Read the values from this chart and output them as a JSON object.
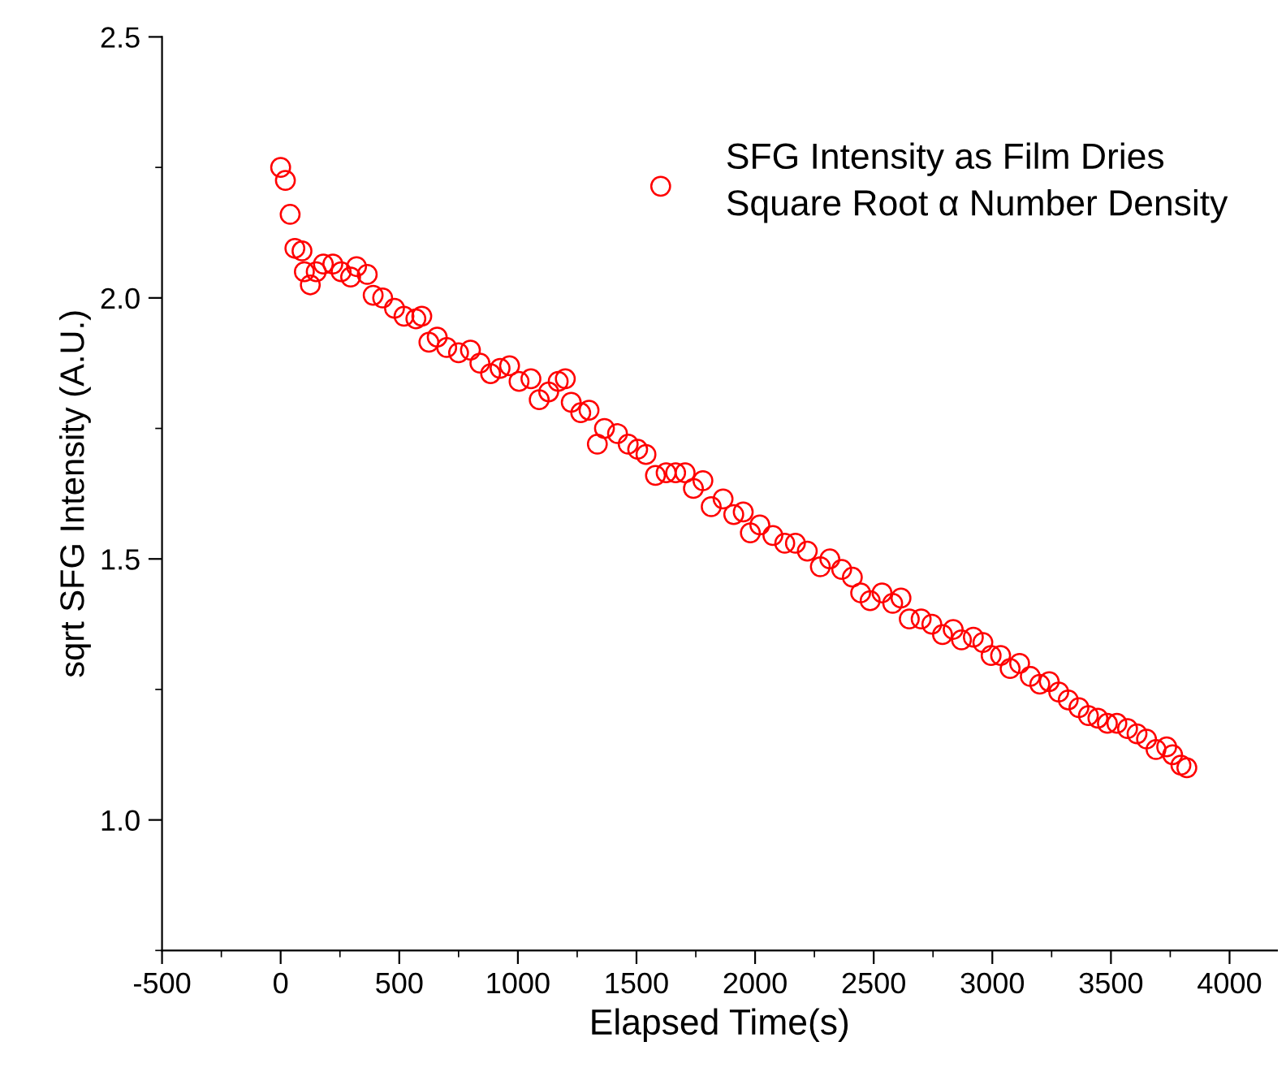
{
  "chart_data": {
    "type": "scatter",
    "xlabel": "Elapsed Time(s)",
    "ylabel": "sqrt SFG Intensity (A.U.)",
    "xlim": [
      -500,
      4200
    ],
    "xticks": [
      -500,
      0,
      500,
      1000,
      1500,
      2000,
      2500,
      3000,
      3500,
      4000
    ],
    "ylim": [
      0.75,
      2.5
    ],
    "yticks": [
      {
        "value": 1.0,
        "label": "1.0"
      },
      1.5,
      {
        "value": 2.0,
        "label": "2.0"
      },
      2.5
    ],
    "grid": false,
    "legend": "top right",
    "marker": "circle",
    "series": [
      {
        "name": "SFG Intensity as Film Dries\nSquare Root α Number Density",
        "color": "#ff0000",
        "x": [
          0,
          20,
          40,
          60,
          90,
          100,
          125,
          150,
          180,
          220,
          255,
          295,
          320,
          365,
          390,
          430,
          480,
          520,
          570,
          595,
          625,
          660,
          700,
          750,
          800,
          840,
          885,
          925,
          965,
          1005,
          1055,
          1090,
          1130,
          1170,
          1200,
          1225,
          1265,
          1300,
          1335,
          1365,
          1420,
          1465,
          1505,
          1540,
          1580,
          1625,
          1665,
          1705,
          1740,
          1780,
          1815,
          1865,
          1910,
          1950,
          1980,
          2020,
          2075,
          2125,
          2170,
          2220,
          2275,
          2315,
          2365,
          2410,
          2445,
          2485,
          2535,
          2580,
          2615,
          2650,
          2700,
          2745,
          2790,
          2835,
          2870,
          2920,
          2960,
          2995,
          3035,
          3075,
          3115,
          3160,
          3200,
          3240,
          3280,
          3320,
          3365,
          3405,
          3445,
          3485,
          3525,
          3570,
          3610,
          3650,
          3690,
          3735,
          3760,
          3795,
          3820
        ],
        "values": [
          2.25,
          2.225,
          2.16,
          2.095,
          2.09,
          2.05,
          2.025,
          2.05,
          2.065,
          2.065,
          2.05,
          2.04,
          2.06,
          2.045,
          2.005,
          2.0,
          1.98,
          1.965,
          1.96,
          1.965,
          1.915,
          1.925,
          1.905,
          1.895,
          1.9,
          1.875,
          1.855,
          1.865,
          1.87,
          1.84,
          1.845,
          1.805,
          1.82,
          1.84,
          1.845,
          1.8,
          1.78,
          1.785,
          1.72,
          1.75,
          1.74,
          1.72,
          1.71,
          1.7,
          1.66,
          1.665,
          1.665,
          1.665,
          1.635,
          1.65,
          1.6,
          1.615,
          1.585,
          1.59,
          1.55,
          1.565,
          1.545,
          1.53,
          1.53,
          1.515,
          1.485,
          1.5,
          1.48,
          1.465,
          1.435,
          1.42,
          1.435,
          1.415,
          1.425,
          1.385,
          1.385,
          1.375,
          1.355,
          1.365,
          1.345,
          1.35,
          1.34,
          1.315,
          1.315,
          1.29,
          1.3,
          1.275,
          1.26,
          1.265,
          1.245,
          1.23,
          1.215,
          1.2,
          1.195,
          1.185,
          1.185,
          1.175,
          1.165,
          1.155,
          1.135,
          1.14,
          1.125,
          1.105,
          1.1
        ]
      }
    ]
  }
}
